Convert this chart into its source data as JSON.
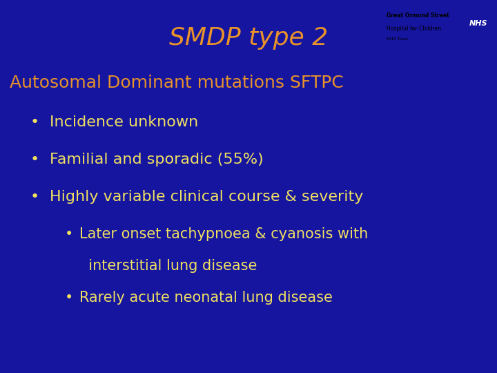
{
  "background_color": "#1515a0",
  "title": "SMDP type 2",
  "title_color": "#e8922a",
  "title_fontsize": 26,
  "title_fontstyle": "italic",
  "subtitle": "Autosomal Dominant mutations SFTPC",
  "subtitle_color": "#e8922a",
  "subtitle_fontsize": 18,
  "bullet_color": "#f0e060",
  "bullet_fontsize": 16,
  "sub_bullet_fontsize": 15,
  "bullets": [
    "Incidence unknown",
    "Familial and sporadic (55%)",
    "Highly variable clinical course & severity"
  ],
  "sub_bullet_line1a": "Later onset tachypnoea & cyanosis with",
  "sub_bullet_line1b": "  interstitial lung disease",
  "sub_bullet_line2": "Rarely acute neonatal lung disease",
  "logo_text1": "Great Ormond Street",
  "logo_text2": "Hospital for Children",
  "logo_text3": "NHS Trust",
  "nhs_color": "#003087"
}
